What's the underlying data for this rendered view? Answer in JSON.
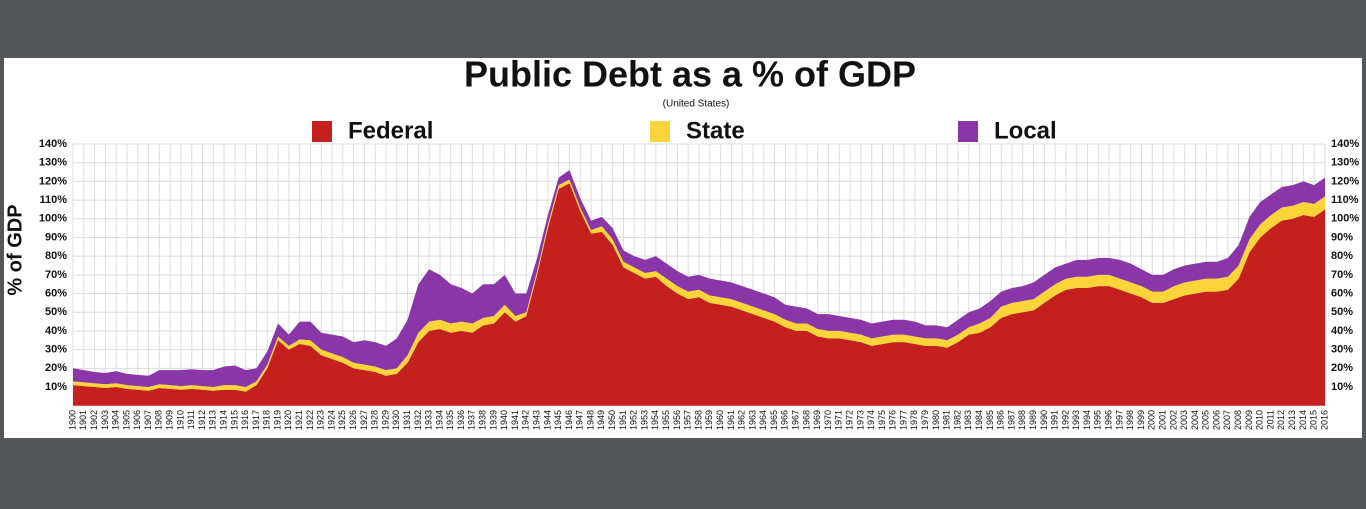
{
  "chart_data": {
    "type": "stacked-area",
    "title": "Public Debt as a % of GDP",
    "subtitle": "(United States)",
    "y_label": "% of GDP",
    "categories": [
      "1900",
      "1901",
      "1902",
      "1903",
      "1904",
      "1905",
      "1906",
      "1907",
      "1908",
      "1909",
      "1910",
      "1911",
      "1912",
      "1913",
      "1914",
      "1915",
      "1916",
      "1917",
      "1918",
      "1919",
      "1920",
      "1921",
      "1922",
      "1923",
      "1924",
      "1925",
      "1926",
      "1927",
      "1928",
      "1929",
      "1930",
      "1931",
      "1932",
      "1933",
      "1934",
      "1935",
      "1936",
      "1937",
      "1938",
      "1939",
      "1940",
      "1941",
      "1942",
      "1943",
      "1944",
      "1945",
      "1946",
      "1947",
      "1948",
      "1949",
      "1950",
      "1951",
      "1952",
      "1953",
      "1954",
      "1955",
      "1956",
      "1957",
      "1958",
      "1959",
      "1960",
      "1961",
      "1962",
      "1963",
      "1964",
      "1965",
      "1966",
      "1967",
      "1968",
      "1969",
      "1970",
      "1971",
      "1972",
      "1973",
      "1974",
      "1975",
      "1976",
      "1977",
      "1978",
      "1979",
      "1980",
      "1981",
      "1982",
      "1983",
      "1984",
      "1985",
      "1986",
      "1987",
      "1988",
      "1989",
      "1990",
      "1991",
      "1992",
      "1993",
      "1994",
      "1995",
      "1996",
      "1997",
      "1998",
      "1999",
      "2000",
      "2001",
      "2002",
      "2003",
      "2004",
      "2005",
      "2006",
      "2007",
      "2008",
      "2009",
      "2010",
      "2011",
      "2012",
      "2013",
      "2014",
      "2015",
      "2016"
    ],
    "series": [
      {
        "name": "Federal",
        "color": "#c3201e",
        "values": [
          11,
          10.5,
          10,
          9.5,
          10,
          9,
          8.5,
          8,
          9.5,
          9,
          8.5,
          9,
          8.5,
          8,
          8.5,
          8.5,
          7.5,
          11,
          20,
          35,
          30,
          33,
          32,
          27,
          25,
          23,
          20,
          19,
          18,
          16,
          17,
          23,
          34,
          40,
          41,
          39,
          40,
          39,
          43,
          44,
          50,
          45,
          48,
          70,
          95,
          116,
          119,
          104,
          92,
          93,
          86,
          74,
          71,
          68,
          69,
          64,
          60,
          57,
          58,
          55,
          54,
          53,
          51,
          49,
          47,
          45,
          42,
          40,
          40,
          37,
          36,
          36,
          35,
          34,
          32,
          33,
          34,
          34,
          33,
          32,
          32,
          31,
          34,
          38,
          39,
          42,
          47,
          49,
          50,
          51,
          55,
          59,
          62,
          63,
          63,
          64,
          64,
          62,
          60,
          58,
          55,
          55,
          57,
          59,
          60,
          61,
          61,
          62,
          68,
          82,
          90,
          95,
          99,
          100,
          102,
          101,
          105
        ]
      },
      {
        "name": "State",
        "color": "#fbd43a",
        "values": [
          2,
          2,
          2,
          2,
          2,
          2,
          2,
          2,
          2,
          2,
          2,
          2,
          2,
          2,
          2.5,
          2.5,
          2.5,
          2,
          2,
          2,
          2,
          2.5,
          3,
          3,
          3,
          3,
          3,
          3,
          3,
          3,
          3,
          4,
          5,
          5,
          5,
          5,
          5,
          5,
          4,
          4,
          4,
          3,
          2,
          2,
          2,
          2,
          2,
          2,
          2,
          3,
          3,
          3,
          3,
          3,
          3,
          4,
          4,
          4,
          4,
          4,
          4,
          4,
          4,
          4,
          4,
          4,
          4,
          4,
          4,
          4,
          4,
          4,
          4,
          4,
          4,
          4,
          4,
          4,
          4,
          4,
          4,
          4,
          4,
          4,
          5,
          5,
          6,
          6,
          6,
          6,
          6,
          6,
          6,
          6,
          6,
          6,
          6,
          6,
          6,
          6,
          6,
          6,
          7,
          7,
          7,
          7,
          7,
          7,
          7,
          7,
          7,
          7,
          7,
          7,
          7,
          7,
          7
        ]
      },
      {
        "name": "Local",
        "color": "#8a36a8",
        "values": [
          7,
          6.5,
          6,
          6,
          6.5,
          6,
          6,
          6,
          7.5,
          8,
          8.5,
          8.5,
          8.5,
          9,
          10,
          10.5,
          9,
          7,
          7,
          7,
          6,
          9.5,
          10,
          9,
          10,
          11,
          11,
          13,
          13,
          13,
          16,
          19,
          26,
          28,
          24,
          21,
          18,
          16,
          18,
          17,
          16,
          12,
          10,
          7,
          5,
          4,
          5,
          5,
          5,
          5,
          6,
          6,
          6,
          7,
          8,
          8,
          8,
          8,
          8,
          9,
          9,
          9,
          9,
          9,
          9,
          9,
          8,
          9,
          8,
          8,
          9,
          8,
          8,
          8,
          8,
          8,
          8,
          8,
          8,
          7,
          7,
          7,
          8,
          8,
          8,
          9,
          8,
          8,
          8,
          9,
          9,
          9,
          8,
          9,
          9,
          9,
          9,
          10,
          10,
          9,
          9,
          9,
          9,
          9,
          9,
          9,
          9,
          10,
          11,
          12,
          12,
          11,
          11,
          11,
          11,
          10,
          10
        ]
      }
    ],
    "ylim": [
      0,
      140
    ],
    "yticks": [
      {
        "value": 10,
        "label": "10%"
      },
      {
        "value": 20,
        "label": "20%"
      },
      {
        "value": 30,
        "label": "30%"
      },
      {
        "value": 40,
        "label": "40%"
      },
      {
        "value": 50,
        "label": "50%"
      },
      {
        "value": 60,
        "label": "60%"
      },
      {
        "value": 70,
        "label": "70%"
      },
      {
        "value": 80,
        "label": "80%"
      },
      {
        "value": 90,
        "label": "90%"
      },
      {
        "value": 100,
        "label": "100%"
      },
      {
        "value": 110,
        "label": "110%"
      },
      {
        "value": 120,
        "label": "120%"
      },
      {
        "value": 130,
        "label": "130%"
      },
      {
        "value": 140,
        "label": "140%"
      }
    ],
    "grid": true
  }
}
